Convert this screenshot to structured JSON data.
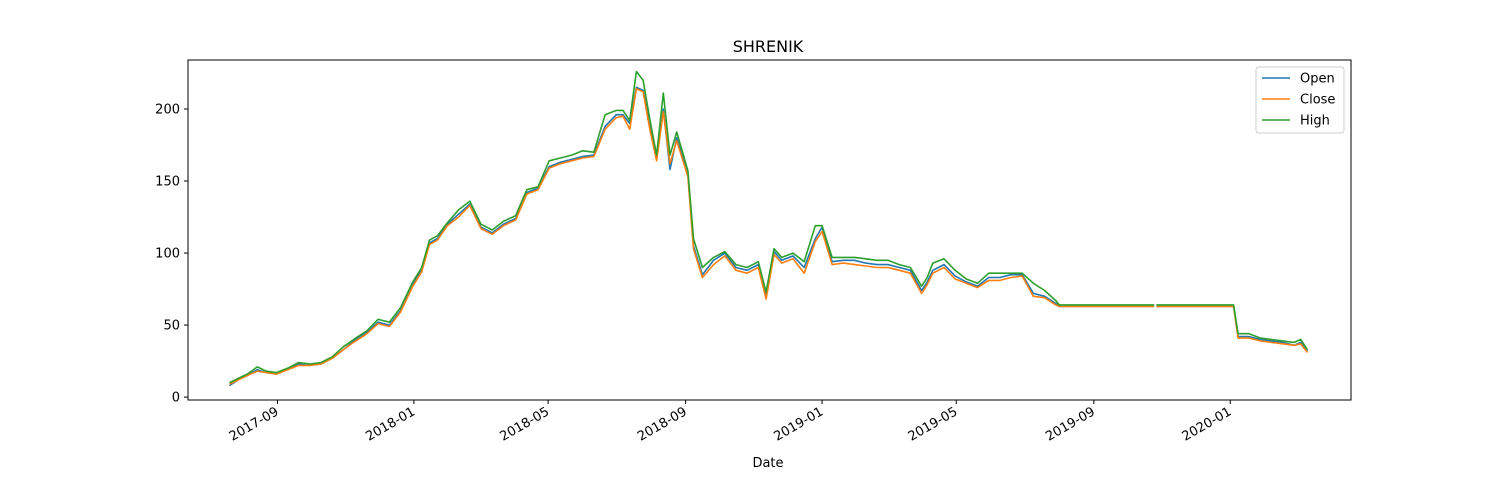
{
  "chart_data": {
    "type": "line",
    "title": "SHRENIK",
    "xlabel": "Date",
    "ylabel": "",
    "x_ticks": [
      "2017-09",
      "2018-01",
      "2018-05",
      "2018-09",
      "2019-01",
      "2019-05",
      "2019-09",
      "2020-01"
    ],
    "y_ticks": [
      "0",
      "50",
      "100",
      "150",
      "200"
    ],
    "y_tick_values": [
      0,
      50,
      100,
      150,
      200
    ],
    "xlim": [
      "2017-06-13",
      "2020-04-18"
    ],
    "ylim": [
      -2,
      234
    ],
    "grid": false,
    "legend_position": "top-right",
    "x": [
      "2017-07-20",
      "2017-07-28",
      "2017-08-05",
      "2017-08-14",
      "2017-08-22",
      "2017-08-31",
      "2017-09-10",
      "2017-09-20",
      "2017-09-30",
      "2017-10-10",
      "2017-10-20",
      "2017-10-30",
      "2017-11-10",
      "2017-11-20",
      "2017-11-30",
      "2017-12-10",
      "2017-12-20",
      "2017-12-31",
      "2018-01-08",
      "2018-01-15",
      "2018-01-22",
      "2018-01-31",
      "2018-02-10",
      "2018-02-20",
      "2018-03-02",
      "2018-03-12",
      "2018-03-22",
      "2018-04-02",
      "2018-04-12",
      "2018-04-22",
      "2018-05-02",
      "2018-05-12",
      "2018-05-22",
      "2018-06-01",
      "2018-06-11",
      "2018-06-21",
      "2018-07-01",
      "2018-07-07",
      "2018-07-13",
      "2018-07-19",
      "2018-07-25",
      "2018-07-31",
      "2018-08-06",
      "2018-08-12",
      "2018-08-18",
      "2018-08-24",
      "2018-08-30",
      "2018-09-03",
      "2018-09-08",
      "2018-09-16",
      "2018-09-26",
      "2018-10-06",
      "2018-10-16",
      "2018-10-26",
      "2018-11-05",
      "2018-11-12",
      "2018-11-19",
      "2018-11-26",
      "2018-12-06",
      "2018-12-16",
      "2018-12-26",
      "2019-01-01",
      "2019-01-10",
      "2019-01-20",
      "2019-01-30",
      "2019-02-09",
      "2019-02-19",
      "2019-03-01",
      "2019-03-11",
      "2019-03-21",
      "2019-03-31",
      "2019-04-05",
      "2019-04-10",
      "2019-04-20",
      "2019-04-30",
      "2019-05-10",
      "2019-05-20",
      "2019-05-30",
      "2019-06-09",
      "2019-06-19",
      "2019-06-29",
      "2019-07-09",
      "2019-07-19",
      "2019-07-29",
      "2019-08-01",
      "2019-10-25",
      "2019-10-27",
      "2020-01-04",
      "2020-01-08",
      "2020-01-18",
      "2020-01-28",
      "2020-02-07",
      "2020-02-17",
      "2020-02-27",
      "2020-03-04",
      "2020-03-10"
    ],
    "series": [
      {
        "name": "Open",
        "color": "#1f77b4",
        "values": [
          8,
          12,
          15,
          19,
          17,
          16,
          19,
          23,
          22,
          23,
          27,
          33,
          40,
          45,
          52,
          50,
          60,
          78,
          88,
          107,
          110,
          120,
          127,
          134,
          118,
          114,
          120,
          124,
          142,
          145,
          160,
          163,
          165,
          167,
          168,
          188,
          196,
          196,
          190,
          215,
          213,
          190,
          165,
          200,
          158,
          180,
          165,
          155,
          105,
          85,
          95,
          100,
          90,
          88,
          92,
          70,
          101,
          95,
          98,
          90,
          110,
          118,
          94,
          95,
          95,
          93,
          92,
          92,
          90,
          88,
          74,
          80,
          88,
          92,
          84,
          80,
          77,
          83,
          83,
          85,
          85,
          72,
          70,
          65,
          63,
          63,
          63,
          63,
          42,
          42,
          40,
          39,
          38,
          36,
          38,
          32
        ]
      },
      {
        "name": "Close",
        "color": "#ff7f0e",
        "values": [
          9,
          12,
          15,
          18,
          17,
          16,
          19,
          22,
          22,
          23,
          27,
          33,
          39,
          44,
          51,
          49,
          59,
          77,
          87,
          106,
          109,
          119,
          125,
          133,
          117,
          113,
          119,
          123,
          141,
          144,
          159,
          162,
          164,
          166,
          167,
          186,
          194,
          195,
          186,
          214,
          212,
          186,
          164,
          198,
          162,
          178,
          163,
          153,
          103,
          83,
          92,
          98,
          88,
          86,
          90,
          68,
          99,
          93,
          96,
          86,
          108,
          115,
          92,
          93,
          92,
          91,
          90,
          90,
          88,
          86,
          72,
          78,
          86,
          90,
          82,
          79,
          76,
          81,
          81,
          83,
          84,
          70,
          69,
          64,
          63,
          63,
          63,
          63,
          41,
          41,
          39,
          38,
          37,
          36,
          37,
          31
        ]
      },
      {
        "name": "High",
        "color": "#2ca02c",
        "values": [
          10,
          13,
          16,
          21,
          18,
          17,
          20,
          24,
          23,
          24,
          28,
          35,
          41,
          46,
          54,
          52,
          62,
          80,
          90,
          109,
          112,
          121,
          130,
          136,
          120,
          116,
          122,
          126,
          144,
          146,
          164,
          166,
          168,
          171,
          170,
          196,
          199,
          199,
          192,
          226,
          220,
          193,
          168,
          211,
          168,
          184,
          168,
          157,
          110,
          90,
          97,
          101,
          92,
          90,
          94,
          73,
          103,
          97,
          100,
          94,
          119,
          119,
          97,
          97,
          97,
          96,
          95,
          95,
          92,
          90,
          77,
          83,
          93,
          96,
          88,
          82,
          79,
          86,
          86,
          86,
          86,
          79,
          74,
          67,
          64,
          64,
          64,
          64,
          44,
          44,
          41,
          40,
          39,
          38,
          40,
          33
        ]
      }
    ]
  }
}
